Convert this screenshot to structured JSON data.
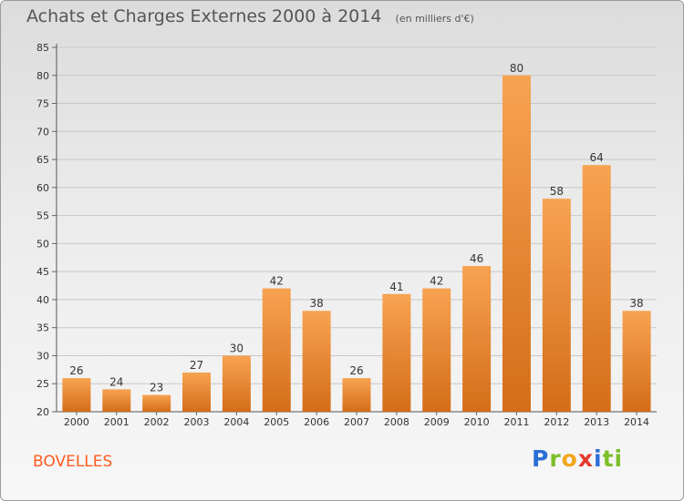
{
  "title": "Achats et Charges Externes 2000 à 2014",
  "unit": "(en milliers d'€)",
  "commune": "BOVELLES",
  "logo": [
    "P",
    "r",
    "o",
    "x",
    "i",
    "ti"
  ],
  "colors": {
    "bar_top": "#f7a352",
    "bar_bottom": "#d46d18",
    "grid": "#c8c8c8",
    "axis_text": "#333333",
    "commune": "#ff5a1f"
  },
  "chart_data": {
    "type": "bar",
    "categories": [
      "2000",
      "2001",
      "2002",
      "2003",
      "2004",
      "2005",
      "2006",
      "2007",
      "2008",
      "2009",
      "2010",
      "2011",
      "2012",
      "2013",
      "2014"
    ],
    "values": [
      26,
      24,
      23,
      27,
      30,
      42,
      38,
      26,
      41,
      42,
      46,
      80,
      58,
      64,
      38
    ],
    "ylim": [
      20,
      85
    ],
    "yticks": [
      20,
      25,
      30,
      35,
      40,
      45,
      50,
      55,
      60,
      65,
      70,
      75,
      80,
      85
    ],
    "grid": true,
    "data_labels": true
  }
}
